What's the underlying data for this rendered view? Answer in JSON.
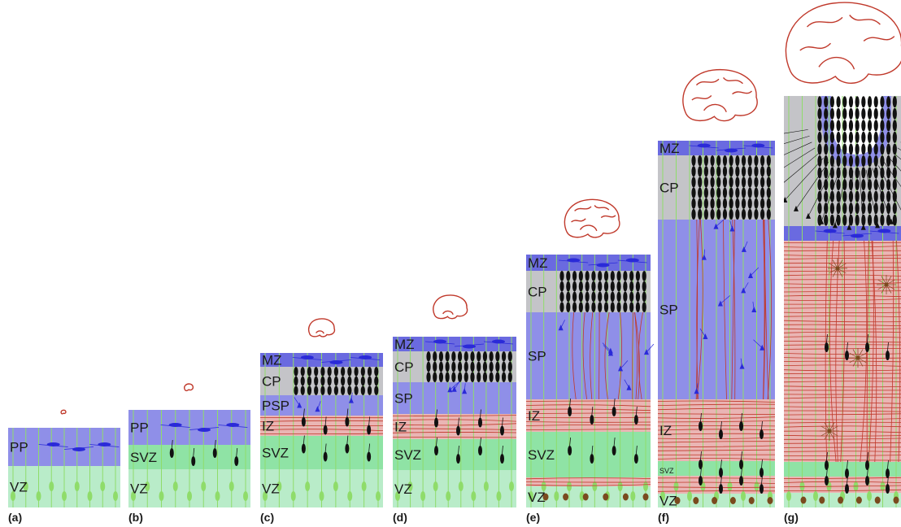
{
  "colors": {
    "vz": "#b9ecc9",
    "svz": "#8fe3a5",
    "iz": "#eab5b4",
    "sp": "#8f8fe8",
    "cp": "#c4c4c8",
    "mz": "#6a6ae0",
    "pp": "#8f8fe8",
    "radial_glia": "#8fdc6a",
    "cells_blue": "#2a2ad8",
    "cells_dark": "#111111",
    "fibers_red": "#c0392b",
    "cells_brown": "#7a4a1e",
    "brain_outline": "#c0392b"
  },
  "panels": [
    {
      "id": "a",
      "label": "(a)",
      "zones": [
        {
          "type": "pp",
          "label": "PP"
        },
        {
          "type": "vz",
          "label": "VZ"
        }
      ]
    },
    {
      "id": "b",
      "label": "(b)",
      "zones": [
        {
          "type": "pp",
          "label": "PP"
        },
        {
          "type": "svz",
          "label": "SVZ"
        },
        {
          "type": "vz",
          "label": "VZ"
        }
      ]
    },
    {
      "id": "c",
      "label": "(c)",
      "zones": [
        {
          "type": "mz",
          "label": "MZ"
        },
        {
          "type": "cp",
          "label": "CP"
        },
        {
          "type": "sp",
          "label": "PSP"
        },
        {
          "type": "iz",
          "label": "IZ"
        },
        {
          "type": "svz",
          "label": "SVZ"
        },
        {
          "type": "vz",
          "label": "VZ"
        }
      ]
    },
    {
      "id": "d",
      "label": "(d)",
      "zones": [
        {
          "type": "mz",
          "label": "MZ"
        },
        {
          "type": "cp",
          "label": "CP"
        },
        {
          "type": "sp",
          "label": "SP"
        },
        {
          "type": "iz",
          "label": "IZ"
        },
        {
          "type": "svz",
          "label": "SVZ"
        },
        {
          "type": "vz",
          "label": "VZ"
        }
      ]
    },
    {
      "id": "e",
      "label": "(e)",
      "zones": [
        {
          "type": "mz",
          "label": "MZ"
        },
        {
          "type": "cp",
          "label": "CP"
        },
        {
          "type": "sp",
          "label": "SP"
        },
        {
          "type": "iz",
          "label": "IZ"
        },
        {
          "type": "svz",
          "label": "SVZ"
        },
        {
          "type": "iz",
          "label": ""
        },
        {
          "type": "vz",
          "label": "VZ"
        }
      ]
    },
    {
      "id": "f",
      "label": "(f)",
      "zones": [
        {
          "type": "mz",
          "label": "MZ"
        },
        {
          "type": "cp",
          "label": "CP"
        },
        {
          "type": "sp",
          "label": "SP"
        },
        {
          "type": "iz",
          "label": "IZ"
        },
        {
          "type": "svz",
          "label": "SVZ"
        },
        {
          "type": "iz",
          "label": ""
        },
        {
          "type": "vz",
          "label": "VZ"
        }
      ]
    },
    {
      "id": "g",
      "label": "(g)",
      "zones": [
        {
          "type": "cp",
          "label": ""
        },
        {
          "type": "mz",
          "label": ""
        },
        {
          "type": "iz",
          "label": ""
        },
        {
          "type": "svz",
          "label": ""
        },
        {
          "type": "iz",
          "label": ""
        },
        {
          "type": "vz",
          "label": ""
        }
      ]
    }
  ]
}
